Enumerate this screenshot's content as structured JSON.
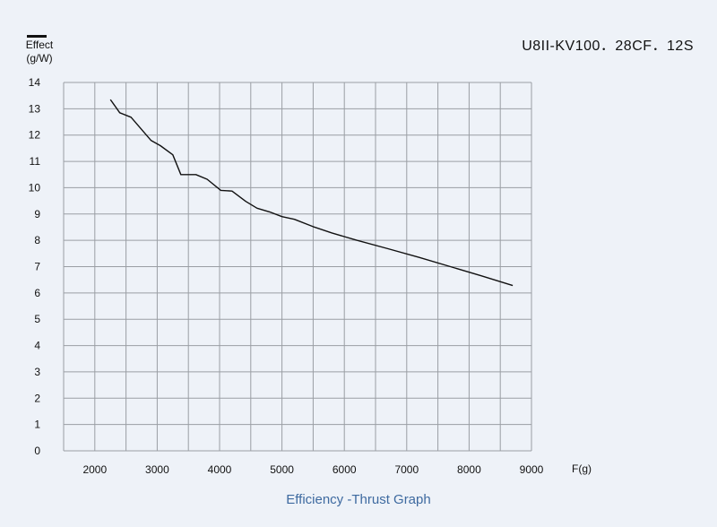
{
  "chart_data": {
    "type": "line",
    "model": "U8II-KV100．28CF．12S",
    "ylabel_line1": "Effect",
    "ylabel_line2": "(g/W)",
    "xlabel": "F(g)",
    "caption": "Efficiency -Thrust Graph",
    "series_color": "#111111",
    "xlim": [
      1500,
      9000
    ],
    "ylim": [
      0,
      14
    ],
    "x_ticks": [
      2000,
      3000,
      4000,
      5000,
      6000,
      7000,
      8000,
      9000
    ],
    "y_ticks": [
      0,
      1,
      2,
      3,
      4,
      5,
      6,
      7,
      8,
      9,
      10,
      11,
      12,
      13,
      14
    ],
    "x_grid_step": 500,
    "grid": true,
    "series": [
      {
        "x": [
          2250,
          2400,
          2580,
          2700,
          2900,
          3050,
          3250,
          3380,
          3620,
          3800,
          4020,
          4200,
          4420,
          4600,
          4800,
          5000,
          5200,
          5500,
          5800,
          6200,
          6700,
          7200,
          7700,
          8200,
          8700
        ],
        "y": [
          13.35,
          12.85,
          12.68,
          12.35,
          11.8,
          11.6,
          11.25,
          10.5,
          10.5,
          10.32,
          9.9,
          9.87,
          9.48,
          9.22,
          9.08,
          8.9,
          8.8,
          8.52,
          8.28,
          8.0,
          7.68,
          7.35,
          7.0,
          6.65,
          6.28
        ]
      }
    ]
  }
}
